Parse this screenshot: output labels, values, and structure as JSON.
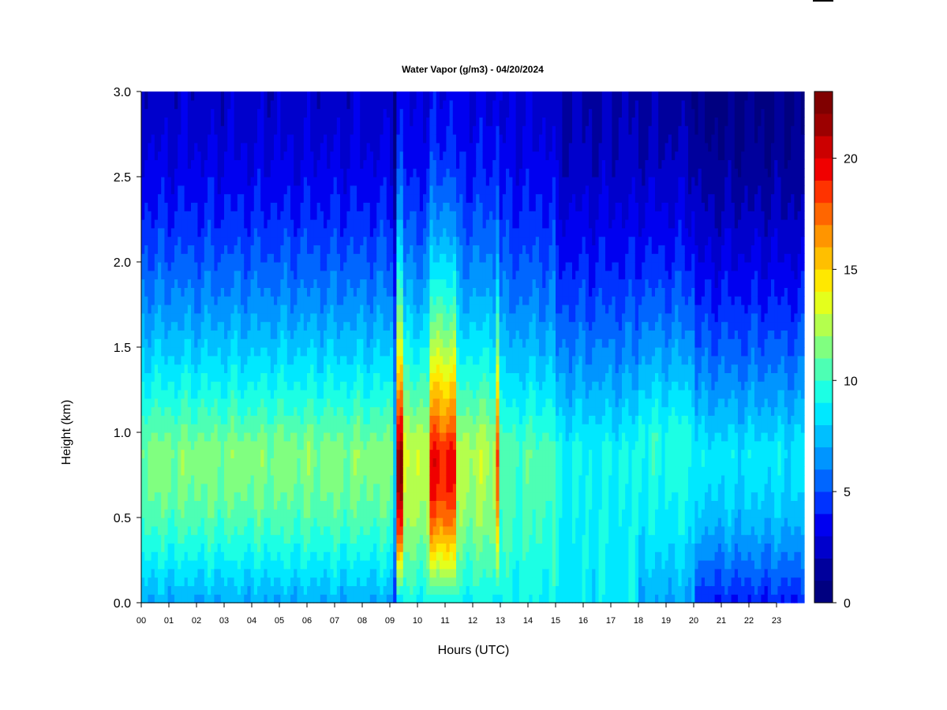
{
  "chart_data": {
    "type": "heatmap",
    "title": "Water Vapor (g/m3) - 04/20/2024",
    "xlabel": "Hours (UTC)",
    "ylabel": "Height (km)",
    "xlim": [
      0,
      24
    ],
    "ylim": [
      0.0,
      3.0
    ],
    "x_ticks": [
      "00",
      "01",
      "02",
      "03",
      "04",
      "05",
      "06",
      "07",
      "08",
      "09",
      "10",
      "11",
      "12",
      "13",
      "14",
      "15",
      "16",
      "17",
      "18",
      "19",
      "20",
      "21",
      "22",
      "23"
    ],
    "y_ticks": [
      "0.0",
      "0.5",
      "1.0",
      "1.5",
      "2.0",
      "2.5",
      "3.0"
    ],
    "colorbar": {
      "range": [
        0,
        23
      ],
      "ticks": [
        "0",
        "5",
        "10",
        "15",
        "20"
      ],
      "level_colors": [
        "#000080",
        "#00009c",
        "#0000cc",
        "#0000f0",
        "#0033ff",
        "#0066ff",
        "#0095ff",
        "#00bfff",
        "#00e8ff",
        "#1cffe4",
        "#4dffb4",
        "#80ff80",
        "#b4ff4d",
        "#e4ff1c",
        "#ffe800",
        "#ffbf00",
        "#ff9500",
        "#ff6600",
        "#ff3300",
        "#f00000",
        "#cc0000",
        "#9c0000",
        "#800000"
      ]
    },
    "grid": false,
    "legend": "colorbar-right",
    "regimes": [
      {
        "hours": [
          0.0,
          9.1
        ],
        "surface": 7.0,
        "peak": 11.5,
        "peak_height": 0.9,
        "top": 2.5
      },
      {
        "hours": [
          9.3,
          9.5
        ],
        "surface": 8.0,
        "peak": 22.0,
        "peak_height": 0.85,
        "top": 3.5
      },
      {
        "hours": [
          9.5,
          10.5
        ],
        "surface": 9.0,
        "peak": 13.0,
        "peak_height": 0.9,
        "top": 3.0
      },
      {
        "hours": [
          10.5,
          11.4
        ],
        "surface": 9.0,
        "peak": 19.5,
        "peak_height": 0.85,
        "top": 3.5
      },
      {
        "hours": [
          11.4,
          12.8
        ],
        "surface": 9.0,
        "peak": 12.5,
        "peak_height": 0.9,
        "top": 3.2
      },
      {
        "hours": [
          12.8,
          13.0
        ],
        "surface": 9.0,
        "peak": 18.0,
        "peak_height": 0.9,
        "top": 3.5
      },
      {
        "hours": [
          13.0,
          15.0
        ],
        "surface": 9.0,
        "peak": 10.5,
        "peak_height": 0.9,
        "top": 2.8
      },
      {
        "hours": [
          15.0,
          18.0
        ],
        "surface": 8.5,
        "peak": 9.0,
        "peak_height": 0.9,
        "top": 1.8
      },
      {
        "hours": [
          18.0,
          20.0
        ],
        "surface": 7.0,
        "peak": 9.5,
        "peak_height": 1.0,
        "top": 1.6
      },
      {
        "hours": [
          20.0,
          24.0
        ],
        "surface": 4.0,
        "peak": 8.5,
        "peak_height": 0.9,
        "top": 0.8
      }
    ]
  }
}
